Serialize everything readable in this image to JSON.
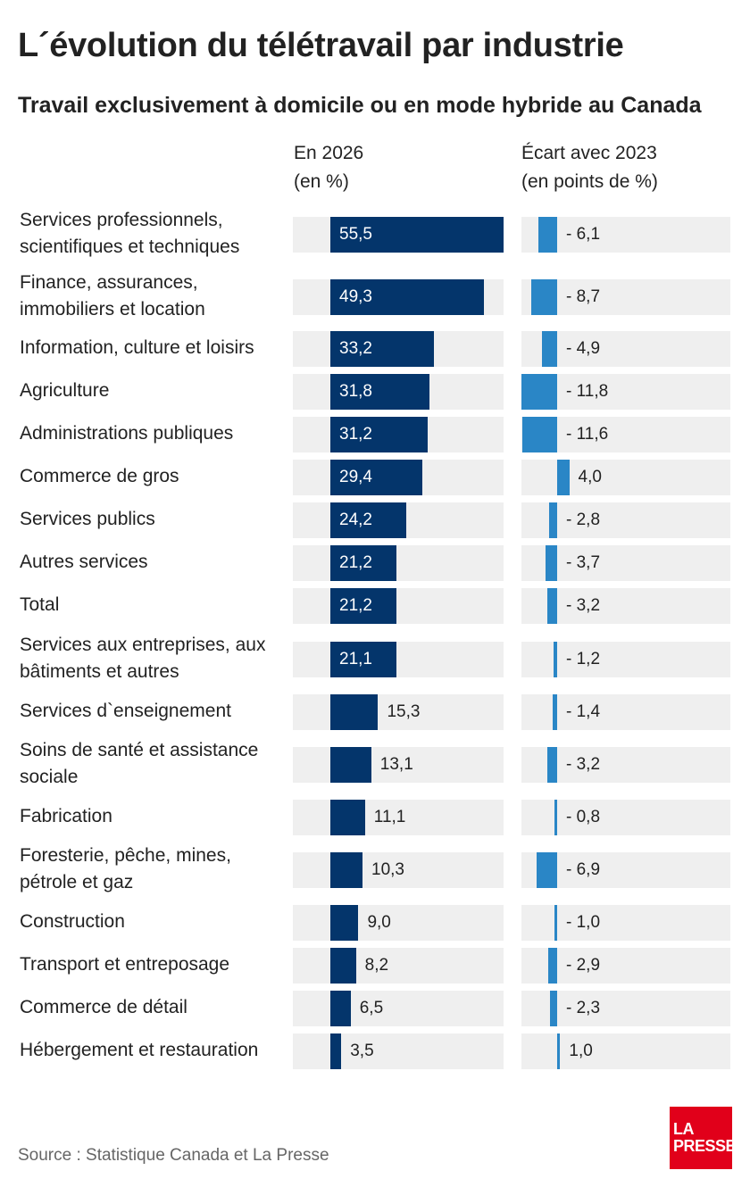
{
  "title": "L´évolution du télétravail par industrie",
  "subtitle": "Travail exclusivement à domicile ou en mode hybride au Canada",
  "col1_header": [
    "En 2026",
    "(en %)"
  ],
  "col2_header": [
    "Écart avec 2023",
    "(en points de %)"
  ],
  "source": "Source : Statistique Canada et La Presse",
  "logo": [
    "LA",
    "PRESSE"
  ],
  "colors": {
    "primary": "#04356b",
    "secondary": "#2a86c6",
    "track": "#efefef",
    "logo": "#e1001a"
  },
  "chart_data": {
    "type": "bar",
    "orientation": "horizontal",
    "categories": [
      "Services professionnels, scientifiques et techniques",
      "Finance, assurances, immobiliers et location",
      "Information, culture et loisirs",
      "Agriculture",
      "Administrations publiques",
      "Commerce de gros",
      "Services publics",
      "Autres services",
      "Total",
      "Services aux entreprises, aux bâtiments et autres",
      "Services d`enseignement",
      "Soins de santé et assistance sociale",
      "Fabrication",
      "Foresterie, pêche, mines, pétrole et gaz",
      "Construction",
      "Transport et entreposage",
      "Commerce de détail",
      "Hébergement et restauration"
    ],
    "series": [
      {
        "name": "En 2026 (en %)",
        "values": [
          55.5,
          49.3,
          33.2,
          31.8,
          31.2,
          29.4,
          24.2,
          21.2,
          21.2,
          21.1,
          15.3,
          13.1,
          11.1,
          10.3,
          9.0,
          8.2,
          6.5,
          3.5
        ],
        "labels": [
          "55,5",
          "49,3",
          "33,2",
          "31,8",
          "31,2",
          "29,4",
          "24,2",
          "21,2",
          "21,2",
          "21,1",
          "15,3",
          "13,1",
          "11,1",
          "10,3",
          "9,0",
          "8,2",
          "6,5",
          "3,5"
        ]
      },
      {
        "name": "Écart avec 2023 (en points de %)",
        "values": [
          -6.1,
          -8.7,
          -4.9,
          -11.8,
          -11.6,
          4.0,
          -2.8,
          -3.7,
          -3.2,
          -1.2,
          -1.4,
          -3.2,
          -0.8,
          -6.9,
          -1.0,
          -2.9,
          -2.3,
          1.0
        ],
        "labels": [
          "- 6,1",
          "- 8,7",
          "- 4,9",
          "- 11,8",
          "- 11,6",
          "4,0",
          "- 2,8",
          "- 3,7",
          "- 3,2",
          "- 1,2",
          "- 1,4",
          "- 3,2",
          "- 0,8",
          "- 6,9",
          "- 1,0",
          "- 2,9",
          "- 2,3",
          "1,0"
        ]
      }
    ]
  }
}
